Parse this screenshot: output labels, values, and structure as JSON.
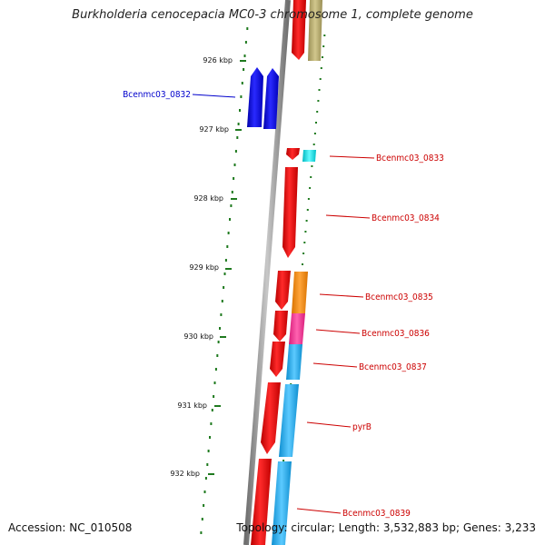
{
  "title": "Burkholderia cenocepacia MC0-3 chromosome 1, complete genome",
  "footer": {
    "accession": "Accession: NC_010508",
    "topology": "Topology: circular; Length: 3,532,883 bp; Genes: 3,233"
  },
  "colors": {
    "backbone": "#8a8a8a",
    "tick": "#1f7a1f",
    "forward_label": "#0000cc",
    "reverse_label": "#cc0000"
  },
  "scale": {
    "labels": [
      "926 kbp",
      "927 kbp",
      "928 kbp",
      "929 kbp",
      "930 kbp",
      "931 kbp",
      "932 kbp"
    ]
  },
  "features": [
    {
      "label": "Bcenmc03_0832",
      "strand": "forward",
      "color": "#0000ee"
    },
    {
      "label": "Bcenmc03_0833",
      "strand": "reverse",
      "color": "#ee0000"
    },
    {
      "label": "Bcenmc03_0834",
      "strand": "reverse",
      "color": "#ee0000"
    },
    {
      "label": "Bcenmc03_0835",
      "strand": "reverse",
      "color": "#ee0000"
    },
    {
      "label": "Bcenmc03_0836",
      "strand": "reverse",
      "color": "#ee0000"
    },
    {
      "label": "Bcenmc03_0837",
      "strand": "reverse",
      "color": "#ee0000"
    },
    {
      "label": "pyrB",
      "strand": "reverse",
      "color": "#ee0000"
    },
    {
      "label": "Bcenmc03_0839",
      "strand": "reverse",
      "color": "#ee0000"
    }
  ],
  "function_colors": [
    "#b8ad6e",
    "#00e5ee",
    "#ff8c00",
    "#ff3399",
    "#1ea7e8"
  ]
}
